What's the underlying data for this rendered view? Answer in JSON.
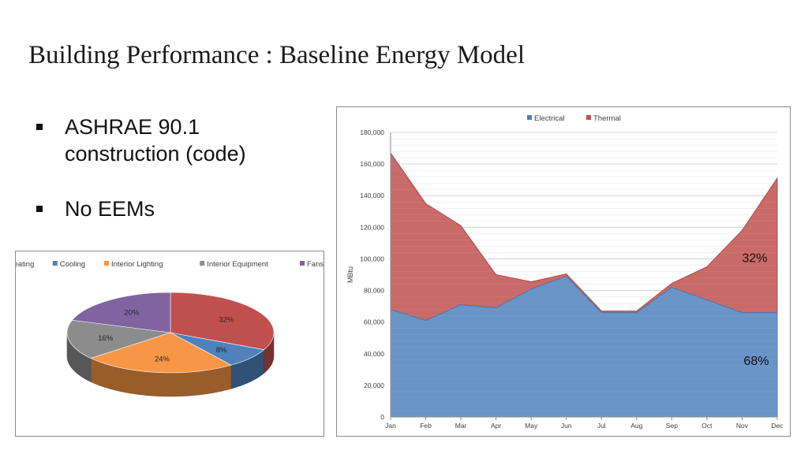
{
  "slide": {
    "title": "Building Performance : Baseline Energy Model",
    "bullets": [
      "ASHRAE 90.1 construction (code)",
      "No EEMs"
    ],
    "bullet_lines": [
      [
        "ASHRAE 90.1",
        "construction (code)"
      ],
      [
        "No EEMs"
      ]
    ]
  },
  "chart_data": [
    {
      "type": "pie",
      "style": "3d",
      "legend_position": "top",
      "categories": [
        "Heating",
        "Cooling",
        "Interior Lighting",
        "Interior Equipment",
        "Fans"
      ],
      "values": [
        32,
        8,
        24,
        16,
        20
      ],
      "labels": [
        "32%",
        "8%",
        "24%",
        "16%",
        "20%"
      ],
      "colors": [
        "#C0504D",
        "#4F81BD",
        "#F79646",
        "#8C8C8C",
        "#8064A2"
      ]
    },
    {
      "type": "area",
      "stacked": true,
      "legend_position": "top",
      "categories": [
        "Jan",
        "Feb",
        "Mar",
        "Apr",
        "May",
        "Jun",
        "Jul",
        "Aug",
        "Sep",
        "Oct",
        "Nov",
        "Dec"
      ],
      "series": [
        {
          "name": "Electrical",
          "color": "#4F81BD",
          "values": [
            68000,
            61000,
            71000,
            69000,
            81000,
            89000,
            66000,
            66000,
            82000,
            74000,
            66000,
            66000
          ]
        },
        {
          "name": "Thermal",
          "color": "#C0504D",
          "values": [
            99000,
            74000,
            50000,
            21000,
            4500,
            1500,
            1000,
            1000,
            2500,
            21000,
            52000,
            85000
          ]
        }
      ],
      "ylabel": "MBtu",
      "ylim": [
        0,
        180000
      ],
      "ytick_step": 20000,
      "ytick_labels": [
        "0",
        "20,000",
        "40,000",
        "60,000",
        "80,000",
        "100,000",
        "120,000",
        "140,000",
        "160,000",
        "180,000"
      ],
      "grid": true,
      "annotations": [
        {
          "text": "32%",
          "series": "Thermal"
        },
        {
          "text": "68%",
          "series": "Electrical"
        }
      ]
    }
  ]
}
